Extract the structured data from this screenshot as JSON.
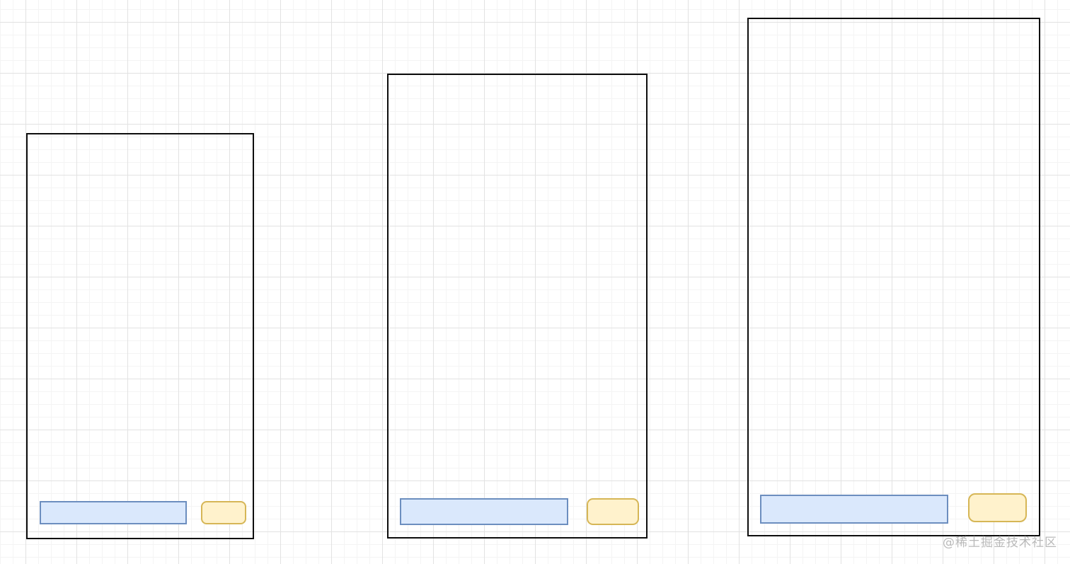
{
  "canvas": {
    "watermark_text": "@稀土掘金技术社区"
  },
  "colors": {
    "grid_minor": "#f4f4f4",
    "grid_major": "#e2e2e2",
    "frame_border": "#0d0d0d",
    "input_fill": "#dae8fc",
    "input_border": "#6c8ebf",
    "button_fill": "#fff2cc",
    "button_border": "#d6b656",
    "watermark_color": "#b9b9b9"
  },
  "shapes": {
    "frame_count": 3,
    "per_frame": [
      "input-bar",
      "rounded-button"
    ]
  }
}
